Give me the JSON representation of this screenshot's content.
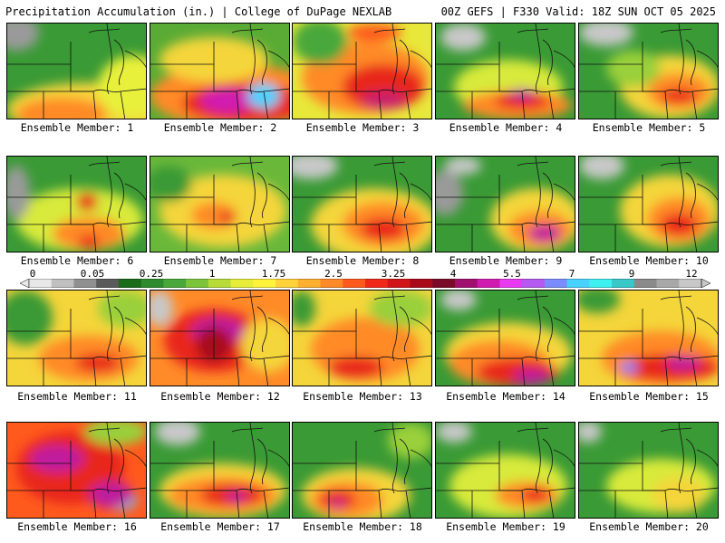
{
  "header": {
    "title": "Precipitation Accumulation (in.) | College of DuPage NEXLAB",
    "run_info": "00Z GEFS | F330 Valid: 18Z SUN OCT 05 2025"
  },
  "colorbar": {
    "labels": [
      "0",
      "0.05",
      "0.25",
      "1",
      "1.75",
      "2.5",
      "3.25",
      "4",
      "5.5",
      "7",
      "9",
      "12"
    ],
    "colors": [
      "#e8e8e8",
      "#c0c0c0",
      "#909090",
      "#5a5a5a",
      "#1a6b1a",
      "#2e8b2e",
      "#4aa83a",
      "#7cc43a",
      "#b7dc3a",
      "#e6ee3a",
      "#fff23a",
      "#ffd23a",
      "#ffb030",
      "#ff8a28",
      "#ff5a1e",
      "#f0281a",
      "#d0141a",
      "#a80a1a",
      "#7a0a28",
      "#a0106e",
      "#d01ab0",
      "#e83af0",
      "#b45af0",
      "#7a8cff",
      "#4ad2ff",
      "#3ef0f0",
      "#38c8c8",
      "#8a8a8a",
      "#a8a8a8",
      "#c8c8c8"
    ]
  },
  "panels": [
    {
      "label": "Ensemble Member: 1",
      "base": "#3a9a35",
      "blobs": [
        [
          "#f4d53a",
          90,
          95,
          90,
          30
        ],
        [
          "#ff8a28",
          60,
          100,
          50,
          18
        ],
        [
          "#e8f03a",
          140,
          70,
          40,
          35
        ],
        [
          "#9a9a9a",
          10,
          10,
          25,
          20
        ]
      ]
    },
    {
      "label": "Ensemble Member: 2",
      "base": "#5aab35",
      "blobs": [
        [
          "#ff8a28",
          95,
          80,
          95,
          35
        ],
        [
          "#e8281a",
          105,
          88,
          70,
          22
        ],
        [
          "#d01ab0",
          85,
          85,
          30,
          14
        ],
        [
          "#4ad2ff",
          125,
          80,
          18,
          14
        ],
        [
          "#f4d53a",
          70,
          40,
          60,
          25
        ]
      ]
    },
    {
      "label": "Ensemble Member: 3",
      "base": "#e8e83a",
      "blobs": [
        [
          "#ff8a28",
          80,
          60,
          70,
          40
        ],
        [
          "#e8281a",
          100,
          70,
          45,
          25
        ],
        [
          "#c81a6e",
          100,
          85,
          25,
          10
        ],
        [
          "#4aa83a",
          30,
          20,
          30,
          25
        ],
        [
          "#ff5a1e",
          90,
          10,
          30,
          10
        ]
      ]
    },
    {
      "label": "Ensemble Member: 4",
      "base": "#3a9a35",
      "blobs": [
        [
          "#d8ea3a",
          80,
          70,
          60,
          30
        ],
        [
          "#ff8a28",
          90,
          90,
          60,
          16
        ],
        [
          "#e8281a",
          95,
          85,
          30,
          10
        ],
        [
          "#c01a9e",
          95,
          78,
          15,
          6
        ],
        [
          "#c8c8c8",
          30,
          15,
          25,
          15
        ]
      ]
    },
    {
      "label": "Ensemble Member: 5",
      "base": "#3a9a35",
      "blobs": [
        [
          "#f4d53a",
          100,
          70,
          55,
          35
        ],
        [
          "#ff8a28",
          110,
          75,
          35,
          20
        ],
        [
          "#e8281a",
          110,
          80,
          20,
          8
        ],
        [
          "#c8c8c8",
          30,
          10,
          30,
          15
        ],
        [
          "#9ad03a",
          60,
          50,
          30,
          20
        ]
      ]
    },
    {
      "label": "Ensemble Member: 6",
      "base": "#3a9a35",
      "blobs": [
        [
          "#d8ea3a",
          80,
          70,
          70,
          35
        ],
        [
          "#ff8a28",
          90,
          85,
          40,
          18
        ],
        [
          "#e8281a",
          88,
          50,
          12,
          10
        ],
        [
          "#e8281a",
          90,
          95,
          12,
          8
        ],
        [
          "#9a9a9a",
          10,
          40,
          15,
          30
        ]
      ]
    },
    {
      "label": "Ensemble Member: 7",
      "base": "#6ab83a",
      "blobs": [
        [
          "#f4d53a",
          80,
          60,
          70,
          40
        ],
        [
          "#ff8a28",
          70,
          65,
          25,
          15
        ],
        [
          "#e8281a",
          85,
          68,
          8,
          8
        ],
        [
          "#3a9a35",
          20,
          30,
          25,
          20
        ]
      ]
    },
    {
      "label": "Ensemble Member: 8",
      "base": "#3a9a35",
      "blobs": [
        [
          "#f4d53a",
          90,
          75,
          70,
          40
        ],
        [
          "#ff8a28",
          100,
          75,
          45,
          25
        ],
        [
          "#e8281a",
          100,
          80,
          25,
          12
        ],
        [
          "#c8c8c8",
          20,
          10,
          30,
          15
        ]
      ]
    },
    {
      "label": "Ensemble Member: 9",
      "base": "#3a9a35",
      "blobs": [
        [
          "#f4d53a",
          110,
          70,
          50,
          35
        ],
        [
          "#ff8a28",
          115,
          80,
          35,
          20
        ],
        [
          "#c01a9e",
          120,
          85,
          18,
          10
        ],
        [
          "#9a9a9a",
          10,
          40,
          20,
          25
        ],
        [
          "#c8c8c8",
          30,
          10,
          20,
          10
        ]
      ]
    },
    {
      "label": "Ensemble Member: 10",
      "base": "#3a9a35",
      "blobs": [
        [
          "#f4d53a",
          100,
          60,
          55,
          40
        ],
        [
          "#ff8a28",
          110,
          70,
          35,
          25
        ],
        [
          "#e8281a",
          110,
          75,
          20,
          12
        ],
        [
          "#c8c8c8",
          25,
          10,
          25,
          15
        ]
      ]
    },
    {
      "label": "Ensemble Member: 11",
      "base": "#f4d53a",
      "blobs": [
        [
          "#3a9a35",
          20,
          30,
          30,
          30
        ],
        [
          "#ff8a28",
          90,
          75,
          55,
          25
        ],
        [
          "#e8281a",
          100,
          80,
          25,
          10
        ],
        [
          "#9ad03a",
          130,
          20,
          30,
          20
        ]
      ]
    },
    {
      "label": "Ensemble Member: 12",
      "base": "#ff8a28",
      "blobs": [
        [
          "#e8281a",
          70,
          55,
          55,
          35
        ],
        [
          "#c01a9e",
          75,
          45,
          30,
          15
        ],
        [
          "#a80a1a",
          70,
          60,
          20,
          20
        ],
        [
          "#c8c8c8",
          10,
          20,
          15,
          20
        ],
        [
          "#f4d53a",
          130,
          60,
          30,
          30
        ]
      ]
    },
    {
      "label": "Ensemble Member: 13",
      "base": "#f4d53a",
      "blobs": [
        [
          "#ff8a28",
          80,
          65,
          60,
          35
        ],
        [
          "#e8281a",
          70,
          85,
          30,
          12
        ],
        [
          "#9ad03a",
          120,
          20,
          35,
          20
        ],
        [
          "#3a9a35",
          10,
          20,
          15,
          20
        ]
      ]
    },
    {
      "label": "Ensemble Member: 14",
      "base": "#3a9a35",
      "blobs": [
        [
          "#f4d53a",
          80,
          70,
          70,
          35
        ],
        [
          "#ff8a28",
          70,
          80,
          55,
          25
        ],
        [
          "#e8281a",
          90,
          90,
          45,
          15
        ],
        [
          "#c01a9e",
          105,
          95,
          20,
          8
        ],
        [
          "#c8c8c8",
          25,
          10,
          20,
          12
        ]
      ]
    },
    {
      "label": "Ensemble Member: 15",
      "base": "#f4d53a",
      "blobs": [
        [
          "#ff8a28",
          90,
          75,
          65,
          30
        ],
        [
          "#e8281a",
          100,
          85,
          55,
          15
        ],
        [
          "#c01a9e",
          115,
          80,
          20,
          8
        ],
        [
          "#7a8cff",
          55,
          85,
          10,
          6
        ],
        [
          "#3a9a35",
          20,
          10,
          25,
          15
        ]
      ]
    },
    {
      "label": "Ensemble Member: 16",
      "base": "#ff5a1e",
      "blobs": [
        [
          "#e8281a",
          70,
          50,
          60,
          40
        ],
        [
          "#c01a9e",
          55,
          40,
          30,
          15
        ],
        [
          "#4ad2ff",
          125,
          85,
          18,
          12
        ],
        [
          "#c01a9e",
          115,
          80,
          25,
          15
        ],
        [
          "#9ad03a",
          120,
          10,
          35,
          15
        ]
      ]
    },
    {
      "label": "Ensemble Member: 17",
      "base": "#3a9a35",
      "blobs": [
        [
          "#f4d53a",
          80,
          75,
          70,
          30
        ],
        [
          "#ff8a28",
          80,
          80,
          60,
          20
        ],
        [
          "#e8281a",
          90,
          80,
          35,
          12
        ],
        [
          "#c01a9e",
          95,
          82,
          12,
          6
        ],
        [
          "#c8c8c8",
          30,
          10,
          25,
          15
        ]
      ]
    },
    {
      "label": "Ensemble Member: 18",
      "base": "#3a9a35",
      "blobs": [
        [
          "#f4d53a",
          70,
          80,
          60,
          30
        ],
        [
          "#ff8a28",
          60,
          85,
          40,
          20
        ],
        [
          "#e8281a",
          50,
          85,
          20,
          10
        ],
        [
          "#c01a9e",
          50,
          90,
          8,
          5
        ],
        [
          "#9ad03a",
          130,
          20,
          25,
          20
        ]
      ]
    },
    {
      "label": "Ensemble Member: 19",
      "base": "#3a9a35",
      "blobs": [
        [
          "#d8ea3a",
          80,
          70,
          65,
          35
        ],
        [
          "#ff8a28",
          100,
          80,
          35,
          15
        ],
        [
          "#e8281a",
          110,
          80,
          15,
          8
        ],
        [
          "#c8c8c8",
          20,
          10,
          20,
          12
        ]
      ]
    },
    {
      "label": "Ensemble Member: 20",
      "base": "#3a9a35",
      "blobs": [
        [
          "#d8ea3a",
          90,
          70,
          60,
          30
        ],
        [
          "#f4d53a",
          110,
          80,
          30,
          20
        ],
        [
          "#c8c8c8",
          10,
          10,
          15,
          12
        ]
      ]
    }
  ]
}
